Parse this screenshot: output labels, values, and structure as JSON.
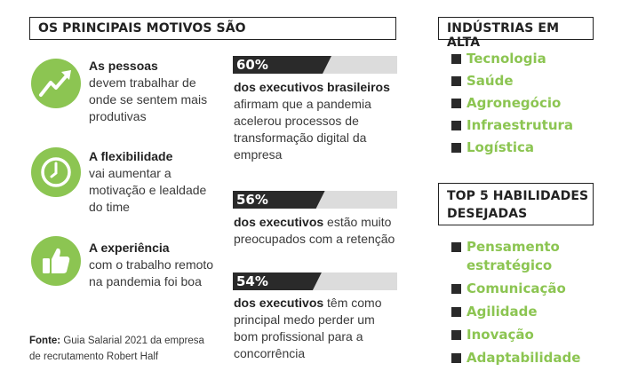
{
  "main_title": "OS PRINCIPAIS MOTIVOS SÃO",
  "reasons": [
    {
      "icon": "growth-chart-icon",
      "title": "As pessoas",
      "text": "devem trabalhar de onde se sentem mais produtivas"
    },
    {
      "icon": "clock-icon",
      "title": "A flexibilidade",
      "text": "vai aumentar a motivação e lealdade do time"
    },
    {
      "icon": "thumbs-up-icon",
      "title": "A experiência",
      "text": "com o trabalho remoto na pandemia foi boa"
    }
  ],
  "stats": [
    {
      "percent": "60%",
      "value": 60,
      "bold": "dos executivos brasileiros",
      "text": "afirmam que a pandemia acelerou processos de transformação digital da empresa"
    },
    {
      "percent": "56%",
      "value": 56,
      "bold": "dos executivos",
      "text": "estão muito preocupados com a retenção"
    },
    {
      "percent": "54%",
      "value": 54,
      "bold": "dos executivos",
      "text": "têm como principal medo perder um bom profissional para a concorrência"
    }
  ],
  "source": {
    "label": "Fonte:",
    "text": "Guia Salarial 2021 da empresa de recrutamento Robert Half"
  },
  "industries": {
    "title": "INDÚSTRIAS EM ALTA",
    "items": [
      "Tecnologia",
      "Saúde",
      "Agronegócio",
      "Infraestrutura",
      "Logística"
    ]
  },
  "skills": {
    "title": "TOP 5 HABILIDADES DESEJADAS",
    "items": [
      "Pensamento estratégico",
      "Comunicação",
      "Agilidade",
      "Inovação",
      "Adaptabilidade"
    ]
  },
  "colors": {
    "accent_green": "#8cc552",
    "dark": "#2a2a2a",
    "bar_track": "#dcdcdc"
  }
}
